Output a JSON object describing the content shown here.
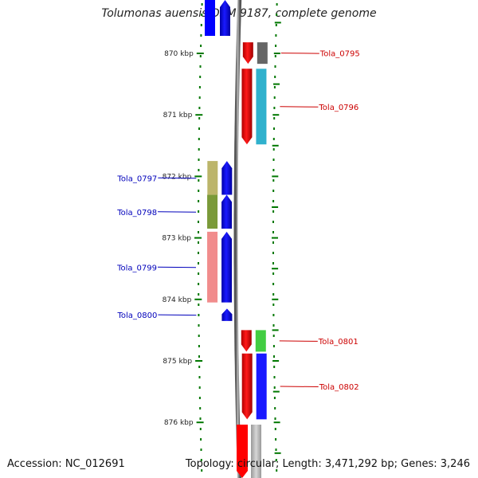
{
  "title": "Tolumonas auensis DSM 9187, complete genome",
  "footer": {
    "accession": "Accession: NC_012691",
    "topology": "Topology: circular; Length: 3,471,292 bp; Genes: 3,246"
  },
  "colors": {
    "forward_gene": "#ff0000",
    "reverse_gene": "#0000ff",
    "forward_label": "#cc0000",
    "reverse_label": "#0000bb",
    "tick": "#007700",
    "backbone": "#888888"
  },
  "scale_ticks": [
    {
      "label": "870 kbp",
      "kbp": 870
    },
    {
      "label": "871 kbp",
      "kbp": 871
    },
    {
      "label": "872 kbp",
      "kbp": 872
    },
    {
      "label": "873 kbp",
      "kbp": 873
    },
    {
      "label": "874 kbp",
      "kbp": 874
    },
    {
      "label": "875 kbp",
      "kbp": 875
    },
    {
      "label": "876 kbp",
      "kbp": 876
    }
  ],
  "genes": [
    {
      "label": "Tola_0795",
      "strand": "+",
      "start_kbp": 869.82,
      "end_kbp": 870.17,
      "cog_color": "#555555"
    },
    {
      "label": "Tola_0796",
      "strand": "+",
      "start_kbp": 870.25,
      "end_kbp": 871.48,
      "cog_color": "#1aa8c8"
    },
    {
      "label": "Tola_0797",
      "strand": "-",
      "start_kbp": 871.75,
      "end_kbp": 872.3,
      "cog_color": "#b5ad5a"
    },
    {
      "label": "Tola_0798",
      "strand": "-",
      "start_kbp": 872.3,
      "end_kbp": 872.85,
      "cog_color": "#6b8f23"
    },
    {
      "label": "Tola_0799",
      "strand": "-",
      "start_kbp": 872.9,
      "end_kbp": 874.05,
      "cog_color": "#f08080"
    },
    {
      "label": "Tola_0800",
      "strand": "-",
      "start_kbp": 874.15,
      "end_kbp": 874.35,
      "cog_color": ""
    },
    {
      "label": "Tola_0801",
      "strand": "+",
      "start_kbp": 874.5,
      "end_kbp": 874.85,
      "cog_color": "#2ec82e"
    },
    {
      "label": "Tola_0802",
      "strand": "+",
      "start_kbp": 874.88,
      "end_kbp": 875.95,
      "cog_color": "#0000ff"
    }
  ]
}
